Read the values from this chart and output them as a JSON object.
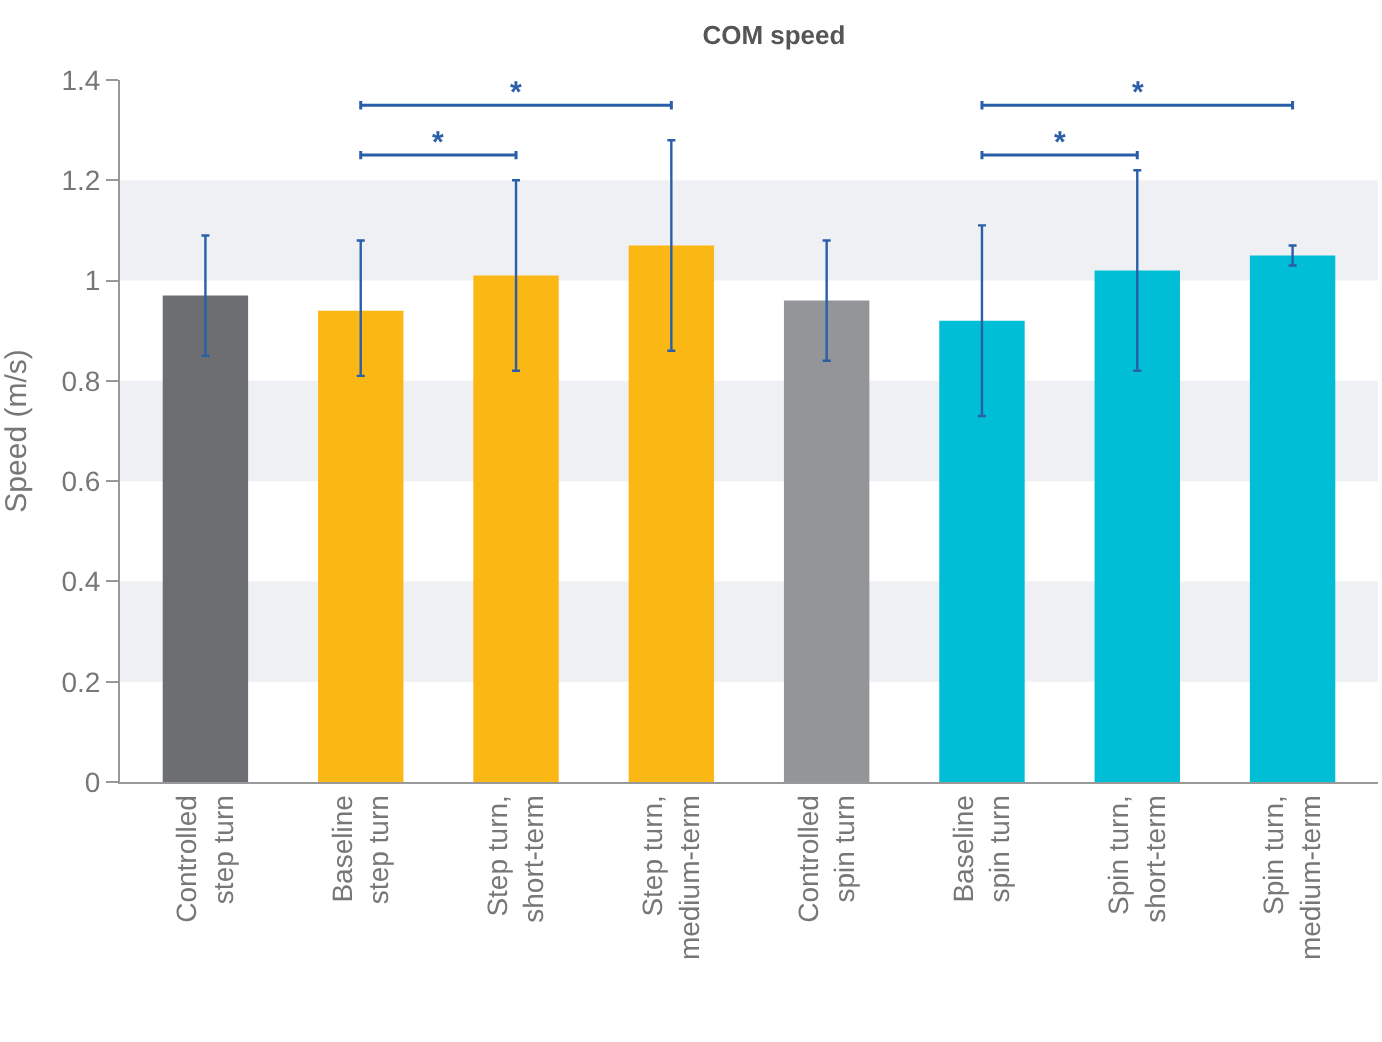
{
  "chart_data": {
    "type": "bar",
    "title": "COM speed",
    "ylabel": "Speed (m/s)",
    "categories": [
      "Controlled\nstep turn",
      "Baseline\nstep turn",
      "Step turn,\nshort-term",
      "Step turn,\nmedium-term",
      "Controlled\nspin turn",
      "Baseline\nspin turn",
      "Spin turn,\nshort-term",
      "Spin turn,\nmedium-term"
    ],
    "values": [
      0.97,
      0.94,
      1.01,
      1.07,
      0.96,
      0.92,
      1.02,
      1.05
    ],
    "colors": [
      "#6d6e71",
      "#fbb713",
      "#fbb713",
      "#fbb713",
      "#939598",
      "#00bed6",
      "#00bed6",
      "#00bed6"
    ],
    "errors": [
      [
        0.85,
        1.09
      ],
      [
        0.81,
        1.08
      ],
      [
        0.82,
        1.2
      ],
      [
        0.86,
        1.28
      ],
      [
        0.84,
        1.08
      ],
      [
        0.73,
        1.11
      ],
      [
        0.82,
        1.22
      ],
      [
        1.03,
        1.07
      ]
    ],
    "ylim": [
      0,
      1.4
    ],
    "yticks": [
      0,
      0.2,
      0.4,
      0.6,
      0.8,
      1,
      1.2,
      1.4
    ],
    "grid": false,
    "bands": [
      {
        "axis": "y",
        "from": 0.2,
        "to": 0.4,
        "color": "#eff0f4"
      },
      {
        "axis": "y",
        "from": 0.6,
        "to": 0.8,
        "color": "#eff0f4"
      },
      {
        "axis": "y",
        "from": 1.0,
        "to": 1.2,
        "color": "#eff0f4"
      }
    ],
    "annotations": [
      "*",
      "*",
      "*",
      "*"
    ]
  }
}
